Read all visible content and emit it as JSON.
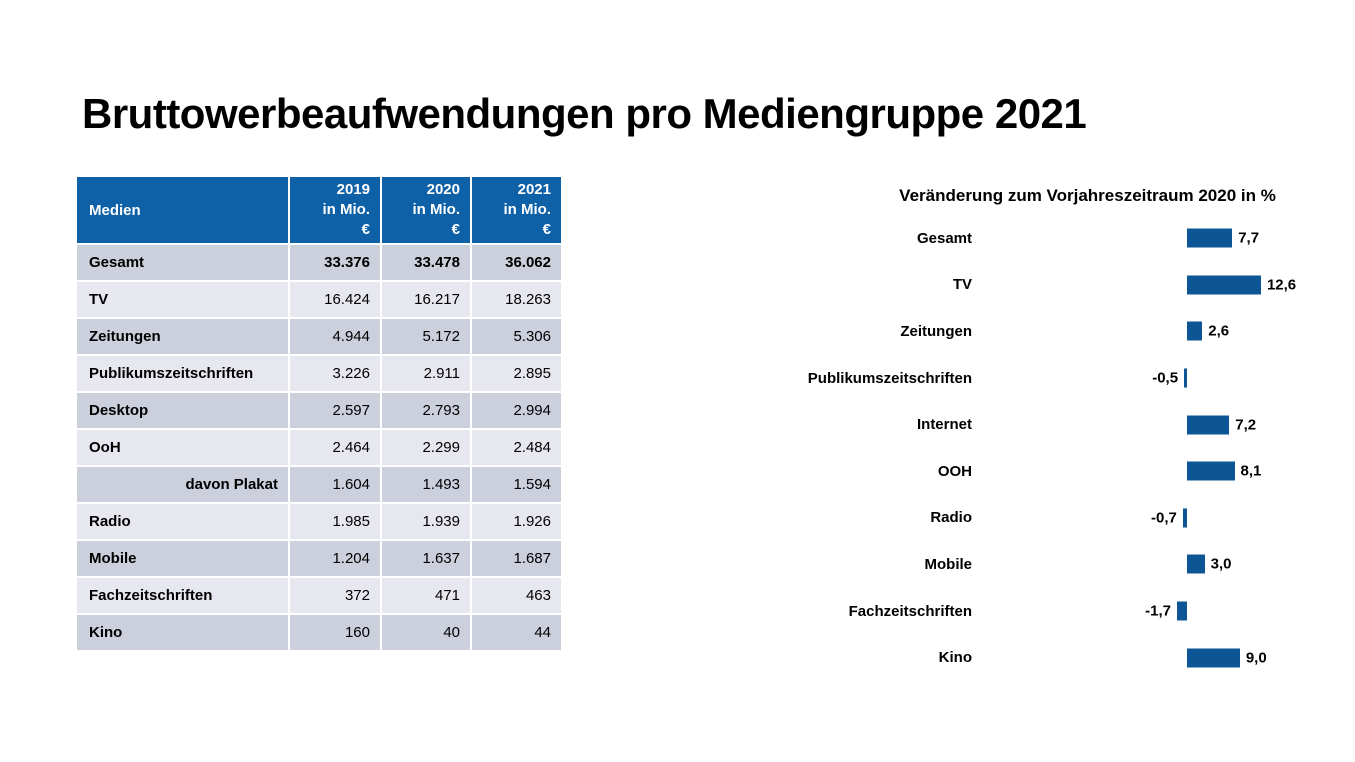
{
  "page": {
    "title": "Bruttowerbeaufwendungen pro Mediengruppe 2021"
  },
  "colors": {
    "header_blue": "#0F61A7",
    "bar_blue": "#0D5594",
    "row_shade_dark": "#CBD0DC",
    "row_shade_light": "#E7E8EF",
    "text": "#000000"
  },
  "chart_data": [
    {
      "type": "table",
      "header": {
        "media_label": "Medien",
        "year_columns": [
          {
            "year": "2019",
            "line2": "in Mio.",
            "line3": "€"
          },
          {
            "year": "2020",
            "line2": "in Mio.",
            "line3": "€"
          },
          {
            "year": "2021",
            "line2": "in Mio.",
            "line3": "€"
          }
        ]
      },
      "rows": [
        {
          "label": "Gesamt",
          "indent": false,
          "bold_values": true,
          "values": [
            "33.376",
            "33.478",
            "36.062"
          ]
        },
        {
          "label": "TV",
          "indent": false,
          "bold_values": false,
          "values": [
            "16.424",
            "16.217",
            "18.263"
          ]
        },
        {
          "label": "Zeitungen",
          "indent": false,
          "bold_values": false,
          "values": [
            "4.944",
            "5.172",
            "5.306"
          ]
        },
        {
          "label": "Publikumszeitschriften",
          "indent": false,
          "bold_values": false,
          "values": [
            "3.226",
            "2.911",
            "2.895"
          ]
        },
        {
          "label": "Desktop",
          "indent": false,
          "bold_values": false,
          "values": [
            "2.597",
            "2.793",
            "2.994"
          ]
        },
        {
          "label": "OoH",
          "indent": false,
          "bold_values": false,
          "values": [
            "2.464",
            "2.299",
            "2.484"
          ]
        },
        {
          "label": "davon Plakat",
          "indent": true,
          "bold_values": false,
          "values": [
            "1.604",
            "1.493",
            "1.594"
          ]
        },
        {
          "label": "Radio",
          "indent": false,
          "bold_values": false,
          "values": [
            "1.985",
            "1.939",
            "1.926"
          ]
        },
        {
          "label": "Mobile",
          "indent": false,
          "bold_values": false,
          "values": [
            "1.204",
            "1.637",
            "1.687"
          ]
        },
        {
          "label": "Fachzeitschriften",
          "indent": false,
          "bold_values": false,
          "values": [
            "372",
            "471",
            "463"
          ]
        },
        {
          "label": "Kino",
          "indent": false,
          "bold_values": false,
          "values": [
            "160",
            "40",
            "44"
          ]
        }
      ]
    },
    {
      "type": "bar",
      "orientation": "horizontal",
      "title": "Veränderung zum Vorjahreszeitraum 2020 in %",
      "categories": [
        "Gesamt",
        "TV",
        "Zeitungen",
        "Publikumszeitschriften",
        "Internet",
        "OOH",
        "Radio",
        "Mobile",
        "Fachzeitschriften",
        "Kino"
      ],
      "values": [
        7.7,
        12.6,
        2.6,
        -0.5,
        7.2,
        8.1,
        -0.7,
        3.0,
        -1.7,
        9.0
      ],
      "value_labels": [
        "7,7",
        "12,6",
        "2,6",
        "-0,5",
        "7,2",
        "8,1",
        "-0,7",
        "3,0",
        "-1,7",
        "9,0"
      ],
      "xlim_hint": [
        -2,
        13
      ],
      "grid": false,
      "legend": "none",
      "value_label_position": "outside-end"
    }
  ]
}
